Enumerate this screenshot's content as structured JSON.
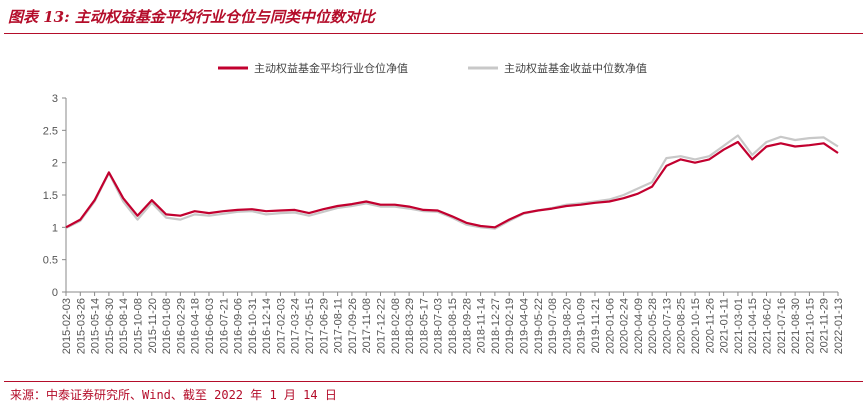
{
  "figure": {
    "title": "图表 13: 主动权益基金平均行业仓位与同类中位数对比",
    "source": "来源：中泰证券研究所、Wind、截至 2022 年 1 月 14 日"
  },
  "colors": {
    "accent": "#b40d2a",
    "series1": "#c2002f",
    "series2": "#c8c8c8"
  },
  "chart_data": {
    "type": "line",
    "ylim": [
      0,
      3
    ],
    "yticks": [
      "0",
      "0.5",
      "1",
      "1.5",
      "2",
      "2.5",
      "3"
    ],
    "grid": false,
    "legend_position": "top",
    "x": [
      "2015-02-03",
      "2015-03-26",
      "2015-05-14",
      "2015-06-30",
      "2015-08-14",
      "2015-10-08",
      "2015-11-20",
      "2016-01-08",
      "2016-02-29",
      "2016-04-18",
      "2016-06-03",
      "2016-07-21",
      "2016-09-06",
      "2016-10-31",
      "2016-12-14",
      "2017-02-03",
      "2017-03-24",
      "2017-05-15",
      "2017-06-29",
      "2017-08-11",
      "2017-09-26",
      "2017-11-08",
      "2017-12-22",
      "2018-02-08",
      "2018-03-29",
      "2018-05-17",
      "2018-07-03",
      "2018-08-15",
      "2018-09-28",
      "2018-11-14",
      "2018-12-27",
      "2019-02-19",
      "2019-04-04",
      "2019-05-22",
      "2019-07-08",
      "2019-08-20",
      "2019-10-09",
      "2019-11-21",
      "2020-01-06",
      "2020-02-24",
      "2020-04-09",
      "2020-05-28",
      "2020-07-13",
      "2020-08-25",
      "2020-10-15",
      "2020-11-26",
      "2021-01-11",
      "2021-03-01",
      "2021-04-15",
      "2021-06-02",
      "2021-07-16",
      "2021-08-30",
      "2021-10-15",
      "2021-11-29",
      "2022-01-13"
    ],
    "xtick_labels": [
      "2015-02-03",
      "2015-03-26",
      "2015-05-14",
      "2015-06-30",
      "2015-08-14",
      "2015-10-08",
      "2015-11-20",
      "2016-01-08",
      "2016-02-29",
      "2016-04-18",
      "2016-06-03",
      "2016-07-21",
      "2016-09-06",
      "2016-10-31",
      "2016-12-14",
      "2017-02-03",
      "2017-03-24",
      "2017-05-15",
      "2017-06-29",
      "2017-08-11",
      "2017-09-26",
      "2017-11-08",
      "2017-12-22",
      "2018-02-08",
      "2018-03-29",
      "2018-05-17",
      "2018-07-03",
      "2018-08-15",
      "2018-09-28",
      "2018-11-14",
      "2018-12-27",
      "2019-02-19",
      "2019-04-04",
      "2019-05-22",
      "2019-07-08",
      "2019-08-20",
      "2019-10-09",
      "2019-11-21",
      "2020-01-06",
      "2020-02-24",
      "2020-04-09",
      "2020-05-28",
      "2020-07-13",
      "2020-08-25",
      "2020-10-15",
      "2020-11-26",
      "2021-01-11",
      "2021-03-01",
      "2021-04-15",
      "2021-06-02",
      "2021-07-16",
      "2021-08-30",
      "2021-10-15",
      "2021-11-29",
      "2022-01-13"
    ],
    "series": [
      {
        "name": "主动权益基金平均行业仓位净值",
        "values": [
          1.0,
          1.12,
          1.42,
          1.85,
          1.45,
          1.18,
          1.42,
          1.2,
          1.18,
          1.25,
          1.22,
          1.25,
          1.27,
          1.28,
          1.25,
          1.26,
          1.27,
          1.22,
          1.28,
          1.33,
          1.36,
          1.4,
          1.35,
          1.35,
          1.32,
          1.27,
          1.26,
          1.17,
          1.07,
          1.02,
          1.0,
          1.12,
          1.22,
          1.26,
          1.29,
          1.33,
          1.35,
          1.38,
          1.4,
          1.45,
          1.52,
          1.63,
          1.95,
          2.05,
          2.0,
          2.05,
          2.2,
          2.32,
          2.05,
          2.25,
          2.3,
          2.25,
          2.27,
          2.3,
          2.15
        ]
      },
      {
        "name": "主动权益基金收益中位数净值",
        "values": [
          0.99,
          1.1,
          1.4,
          1.84,
          1.4,
          1.12,
          1.38,
          1.15,
          1.12,
          1.2,
          1.18,
          1.21,
          1.24,
          1.25,
          1.2,
          1.22,
          1.23,
          1.18,
          1.24,
          1.3,
          1.33,
          1.37,
          1.32,
          1.32,
          1.29,
          1.25,
          1.24,
          1.15,
          1.04,
          1.0,
          0.98,
          1.1,
          1.21,
          1.26,
          1.3,
          1.35,
          1.37,
          1.4,
          1.43,
          1.5,
          1.6,
          1.7,
          2.07,
          2.1,
          2.05,
          2.1,
          2.26,
          2.42,
          2.12,
          2.32,
          2.4,
          2.35,
          2.38,
          2.39,
          2.25
        ]
      }
    ]
  }
}
